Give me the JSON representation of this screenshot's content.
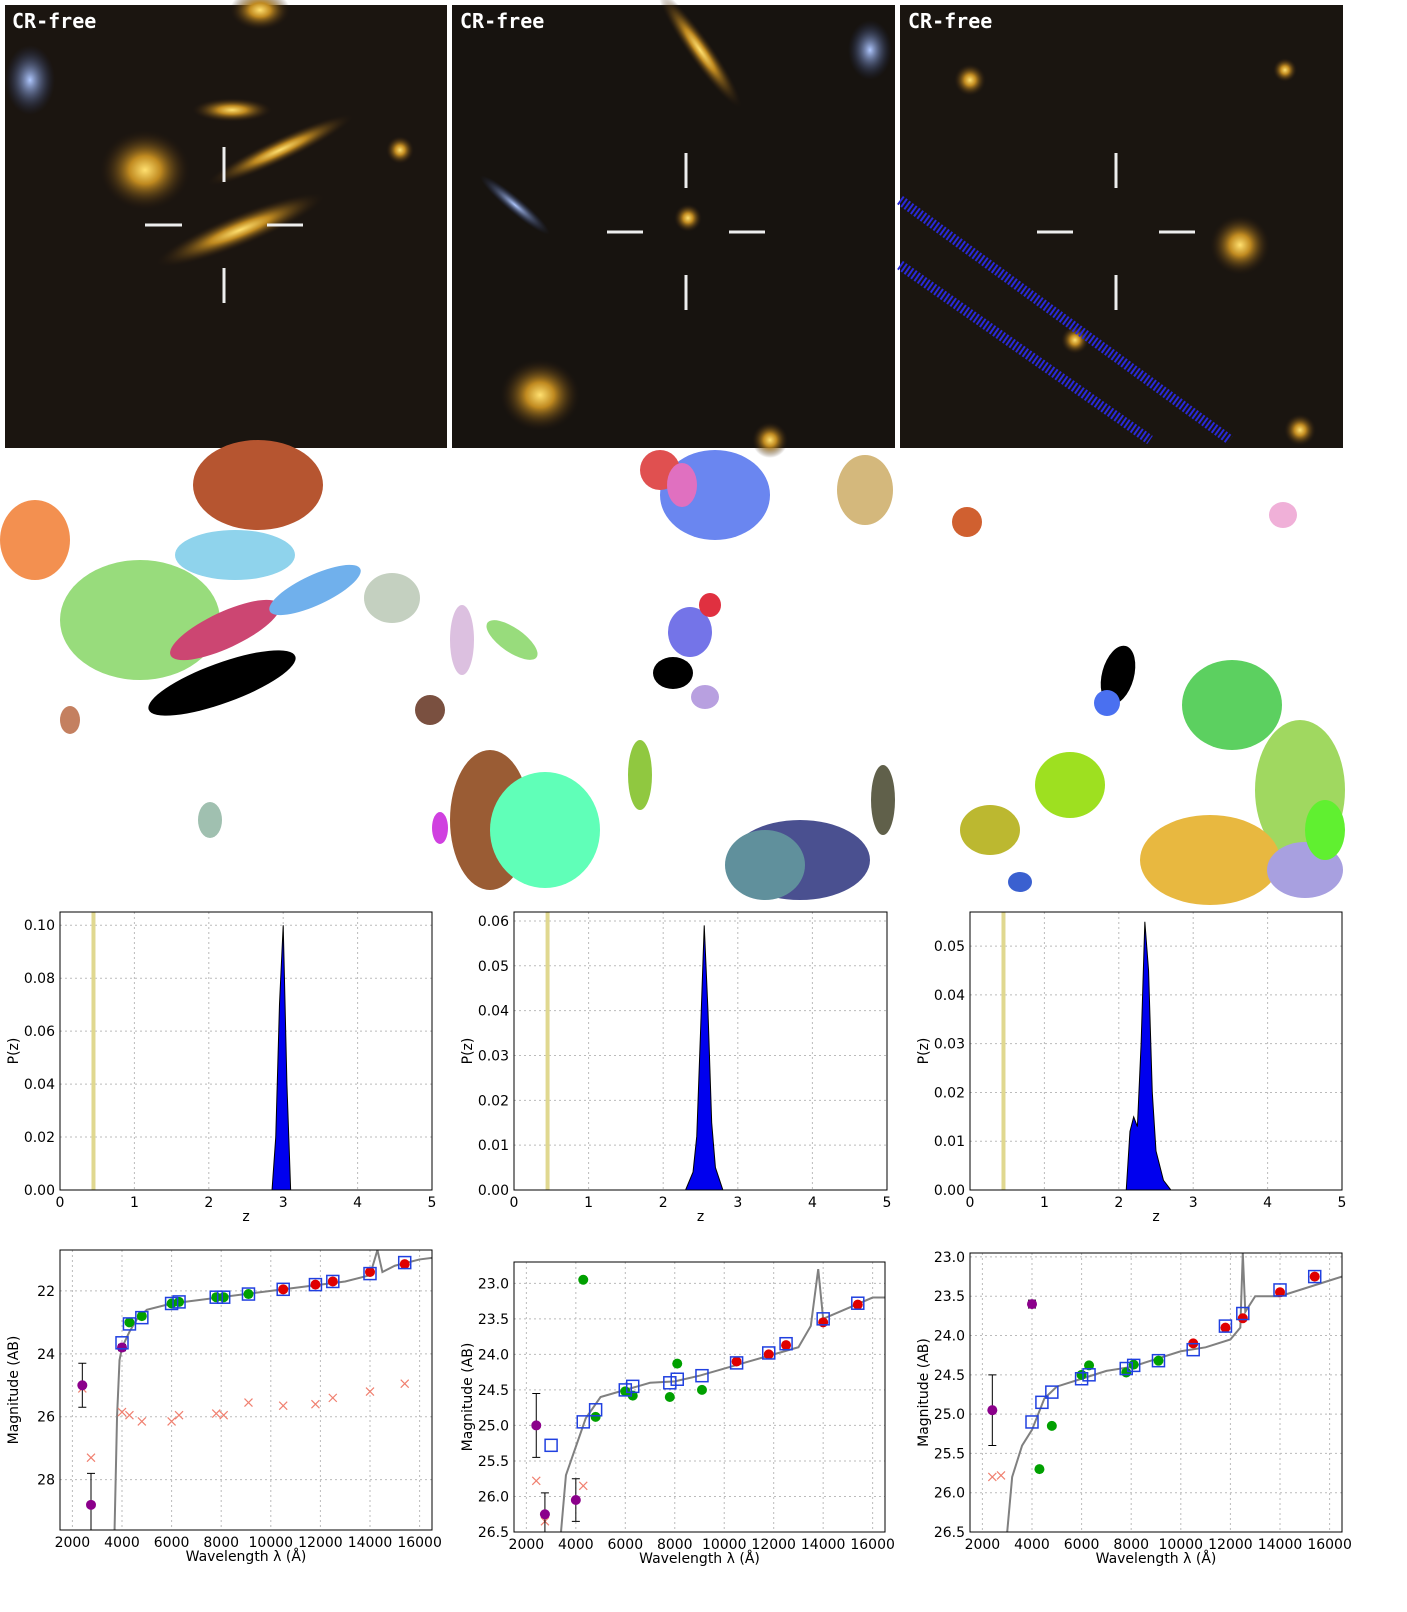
{
  "image_panels": [
    {
      "label": "CR-free"
    },
    {
      "label": "CR-free"
    },
    {
      "label": "CR-free"
    }
  ],
  "chart_data": [
    {
      "type": "area",
      "xlabel": "z",
      "ylabel": "P(z)",
      "xlim": [
        0,
        5
      ],
      "xticks": [
        0,
        1,
        2,
        3,
        4,
        5
      ],
      "ylim": [
        0,
        0.105
      ],
      "yticks": [
        {
          "value": 0,
          "label": "0.00"
        },
        {
          "value": 0.02,
          "label": "0.02"
        },
        {
          "value": 0.04,
          "label": "0.04"
        },
        {
          "value": 0.06,
          "label": "0.06"
        },
        {
          "value": 0.08,
          "label": "0.08"
        },
        {
          "value": 0.1,
          "label": "0.10"
        }
      ],
      "grid": true,
      "vline": 0.45,
      "vline_color": "#e0d890",
      "color": "#0000ee",
      "x": [
        2.85,
        2.9,
        2.95,
        3.0,
        3.05,
        3.1
      ],
      "values": [
        0,
        0.02,
        0.07,
        0.1,
        0.04,
        0
      ]
    },
    {
      "type": "area",
      "xlabel": "z",
      "ylabel": "P(z)",
      "xlim": [
        0,
        5
      ],
      "xticks": [
        0,
        1,
        2,
        3,
        4,
        5
      ],
      "ylim": [
        0,
        0.062
      ],
      "yticks": [
        {
          "value": 0,
          "label": "0.00"
        },
        0.01,
        0.02,
        0.03,
        0.04,
        0.05,
        0.06
      ],
      "grid": true,
      "vline": 0.45,
      "vline_color": "#e0d890",
      "color": "#0000ee",
      "x": [
        2.3,
        2.4,
        2.45,
        2.5,
        2.55,
        2.6,
        2.65,
        2.7,
        2.8
      ],
      "values": [
        0,
        0.004,
        0.012,
        0.035,
        0.059,
        0.04,
        0.015,
        0.005,
        0
      ]
    },
    {
      "type": "area",
      "xlabel": "z",
      "ylabel": "P(z)",
      "xlim": [
        0,
        5
      ],
      "xticks": [
        0,
        1,
        2,
        3,
        4,
        5
      ],
      "ylim": [
        0,
        0.057
      ],
      "yticks": [
        {
          "value": 0,
          "label": "0.00"
        },
        0.01,
        0.02,
        0.03,
        0.04,
        0.05
      ],
      "grid": true,
      "vline": 0.45,
      "vline_color": "#e0d890",
      "color": "#0000ee",
      "x": [
        2.1,
        2.15,
        2.2,
        2.25,
        2.3,
        2.35,
        2.4,
        2.45,
        2.5,
        2.6,
        2.7
      ],
      "values": [
        0,
        0.012,
        0.015,
        0.013,
        0.03,
        0.055,
        0.045,
        0.02,
        0.008,
        0.002,
        0
      ]
    },
    {
      "type": "sed",
      "xlabel": "Wavelength  λ (Å)",
      "ylabel": "Magnitude (AB)",
      "xlim": [
        1500,
        16500
      ],
      "xticks": [
        2000,
        4000,
        6000,
        8000,
        10000,
        12000,
        14000,
        16000
      ],
      "ylim": [
        29.6,
        20.7
      ],
      "yticks": [
        22,
        24,
        26,
        28
      ],
      "grid": true,
      "series": [
        {
          "marker": "line",
          "color": "#808080",
          "x": [
            3700,
            3800,
            3900,
            4000,
            4300,
            4600,
            5000,
            6000,
            7000,
            8000,
            9000,
            10000,
            11000,
            12000,
            13000,
            14000,
            14300,
            14500,
            15000,
            16000,
            16500
          ],
          "values": [
            29.6,
            26,
            24.2,
            23.8,
            23.3,
            22.9,
            22.6,
            22.4,
            22.3,
            22.2,
            22.1,
            22.0,
            21.9,
            21.8,
            21.7,
            21.5,
            20.7,
            21.4,
            21.2,
            21.0,
            20.95
          ]
        },
        {
          "marker": "cross",
          "color": "#f08070",
          "x": [
            2400,
            2750,
            4000,
            4300,
            4800,
            6000,
            6300,
            7800,
            8100,
            9100,
            10500,
            11800,
            12500,
            14000,
            15400
          ],
          "values": [
            25.1,
            27.3,
            25.85,
            25.95,
            26.15,
            26.15,
            25.95,
            25.9,
            25.95,
            25.55,
            25.65,
            25.6,
            25.4,
            25.2,
            24.95
          ]
        },
        {
          "marker": "circle",
          "color": "#8b008b",
          "x": [
            2400,
            2750,
            4000
          ],
          "values": [
            25.0,
            28.8,
            23.8
          ],
          "errors": [
            0.7,
            1.0,
            0.1
          ]
        },
        {
          "marker": "circle",
          "color": "#00a000",
          "x": [
            4300,
            4800,
            6000,
            6300,
            7800,
            8100,
            9100
          ],
          "values": [
            23.0,
            22.8,
            22.4,
            22.35,
            22.2,
            22.2,
            22.1
          ]
        },
        {
          "marker": "circle",
          "color": "#e00000",
          "x": [
            10500,
            11800,
            12500,
            14000,
            15400
          ],
          "values": [
            21.95,
            21.8,
            21.7,
            21.4,
            21.15
          ]
        },
        {
          "marker": "square",
          "color": "#2040e0",
          "x": [
            4000,
            4300,
            4800,
            6000,
            6300,
            7800,
            8100,
            9100,
            10500,
            11800,
            12500,
            14000,
            15400
          ],
          "values": [
            23.65,
            23.05,
            22.85,
            22.4,
            22.35,
            22.2,
            22.2,
            22.1,
            21.95,
            21.8,
            21.7,
            21.45,
            21.1
          ]
        }
      ]
    },
    {
      "type": "sed",
      "xlabel": "Wavelength  λ (Å)",
      "ylabel": "Magnitude (AB)",
      "xlim": [
        1500,
        16500
      ],
      "xticks": [
        2000,
        4000,
        6000,
        8000,
        10000,
        12000,
        14000,
        16000
      ],
      "ylim": [
        26.5,
        22.7
      ],
      "yticks": [
        {
          "value": 23,
          "label": "23.0"
        },
        23.5,
        {
          "value": 24,
          "label": "24.0"
        },
        24.5,
        {
          "value": 25,
          "label": "25.0"
        },
        25.5,
        {
          "value": 26,
          "label": "26.0"
        },
        26.5
      ],
      "grid": true,
      "series": [
        {
          "marker": "line",
          "color": "#808080",
          "x": [
            3400,
            3600,
            3800,
            4000,
            4400,
            5000,
            6000,
            7000,
            8000,
            9000,
            10000,
            11000,
            12000,
            13000,
            13500,
            13800,
            14000,
            15000,
            16000,
            16500
          ],
          "values": [
            26.5,
            25.7,
            25.5,
            25.3,
            24.9,
            24.6,
            24.5,
            24.4,
            24.38,
            24.3,
            24.2,
            24.1,
            24.0,
            23.9,
            23.6,
            22.8,
            23.5,
            23.35,
            23.2,
            23.2
          ]
        },
        {
          "marker": "cross",
          "color": "#f08070",
          "x": [
            2400,
            2750,
            4300
          ],
          "values": [
            25.78,
            26.35,
            25.85
          ]
        },
        {
          "marker": "circle",
          "color": "#8b008b",
          "x": [
            2400,
            2750,
            4000
          ],
          "values": [
            25.0,
            26.25,
            26.05
          ],
          "errors": [
            0.45,
            0.3,
            0.3
          ]
        },
        {
          "marker": "circle",
          "color": "#00a000",
          "x": [
            4300,
            4800,
            6000,
            6300,
            7800,
            8100,
            9100
          ],
          "values": [
            22.95,
            24.88,
            24.52,
            24.58,
            24.6,
            24.13,
            24.5
          ]
        },
        {
          "marker": "circle",
          "color": "#e00000",
          "x": [
            10500,
            11800,
            12500,
            14000,
            15400
          ],
          "values": [
            24.1,
            24.0,
            23.87,
            23.55,
            23.3
          ]
        },
        {
          "marker": "square",
          "color": "#2040e0",
          "x": [
            3000,
            4300,
            4800,
            6000,
            6300,
            7800,
            8100,
            9100,
            10500,
            11800,
            12500,
            14000,
            15400
          ],
          "values": [
            25.28,
            24.95,
            24.78,
            24.5,
            24.45,
            24.4,
            24.35,
            24.3,
            24.12,
            23.98,
            23.85,
            23.5,
            23.28
          ]
        }
      ]
    },
    {
      "type": "sed",
      "xlabel": "Wavelength  λ (Å)",
      "ylabel": "Magnitude (AB)",
      "xlim": [
        1500,
        16500
      ],
      "xticks": [
        2000,
        4000,
        6000,
        8000,
        10000,
        12000,
        14000,
        16000
      ],
      "ylim": [
        26.5,
        22.95
      ],
      "yticks": [
        {
          "value": 23,
          "label": "23.0"
        },
        23.5,
        {
          "value": 24,
          "label": "24.0"
        },
        24.5,
        {
          "value": 25,
          "label": "25.0"
        },
        25.5,
        {
          "value": 26,
          "label": "26.0"
        },
        26.5
      ],
      "grid": true,
      "series": [
        {
          "marker": "line",
          "color": "#808080",
          "x": [
            3000,
            3200,
            3600,
            4000,
            4500,
            5000,
            6000,
            7000,
            8000,
            9000,
            10000,
            11000,
            12000,
            12400,
            12500,
            12600,
            13000,
            14000,
            15000,
            16000,
            16500
          ],
          "values": [
            26.5,
            25.8,
            25.4,
            25.2,
            24.8,
            24.65,
            24.55,
            24.45,
            24.4,
            24.3,
            24.2,
            24.15,
            24.05,
            23.9,
            22.95,
            23.7,
            23.5,
            23.5,
            23.4,
            23.3,
            23.25
          ]
        },
        {
          "marker": "cross",
          "color": "#f08070",
          "x": [
            2400,
            2750
          ],
          "values": [
            25.8,
            25.78
          ]
        },
        {
          "marker": "circle",
          "color": "#8b008b",
          "x": [
            2400,
            4000
          ],
          "values": [
            24.95,
            23.6
          ],
          "errors": [
            0.45,
            0.05
          ]
        },
        {
          "marker": "circle",
          "color": "#00a000",
          "x": [
            4300,
            4800,
            6000,
            6300,
            7800,
            8100,
            9100
          ],
          "values": [
            25.7,
            25.15,
            24.5,
            24.38,
            24.47,
            24.37,
            24.32
          ]
        },
        {
          "marker": "circle",
          "color": "#e00000",
          "x": [
            10500,
            11800,
            12500,
            14000,
            15400
          ],
          "values": [
            24.1,
            23.9,
            23.78,
            23.45,
            23.25
          ]
        },
        {
          "marker": "square",
          "color": "#2040e0",
          "x": [
            4000,
            4400,
            4800,
            6000,
            6300,
            7800,
            8100,
            9100,
            10500,
            11800,
            12500,
            14000,
            15400
          ],
          "values": [
            25.1,
            24.85,
            24.72,
            24.55,
            24.5,
            24.42,
            24.38,
            24.32,
            24.18,
            23.88,
            23.72,
            23.42,
            23.25
          ]
        }
      ]
    }
  ]
}
